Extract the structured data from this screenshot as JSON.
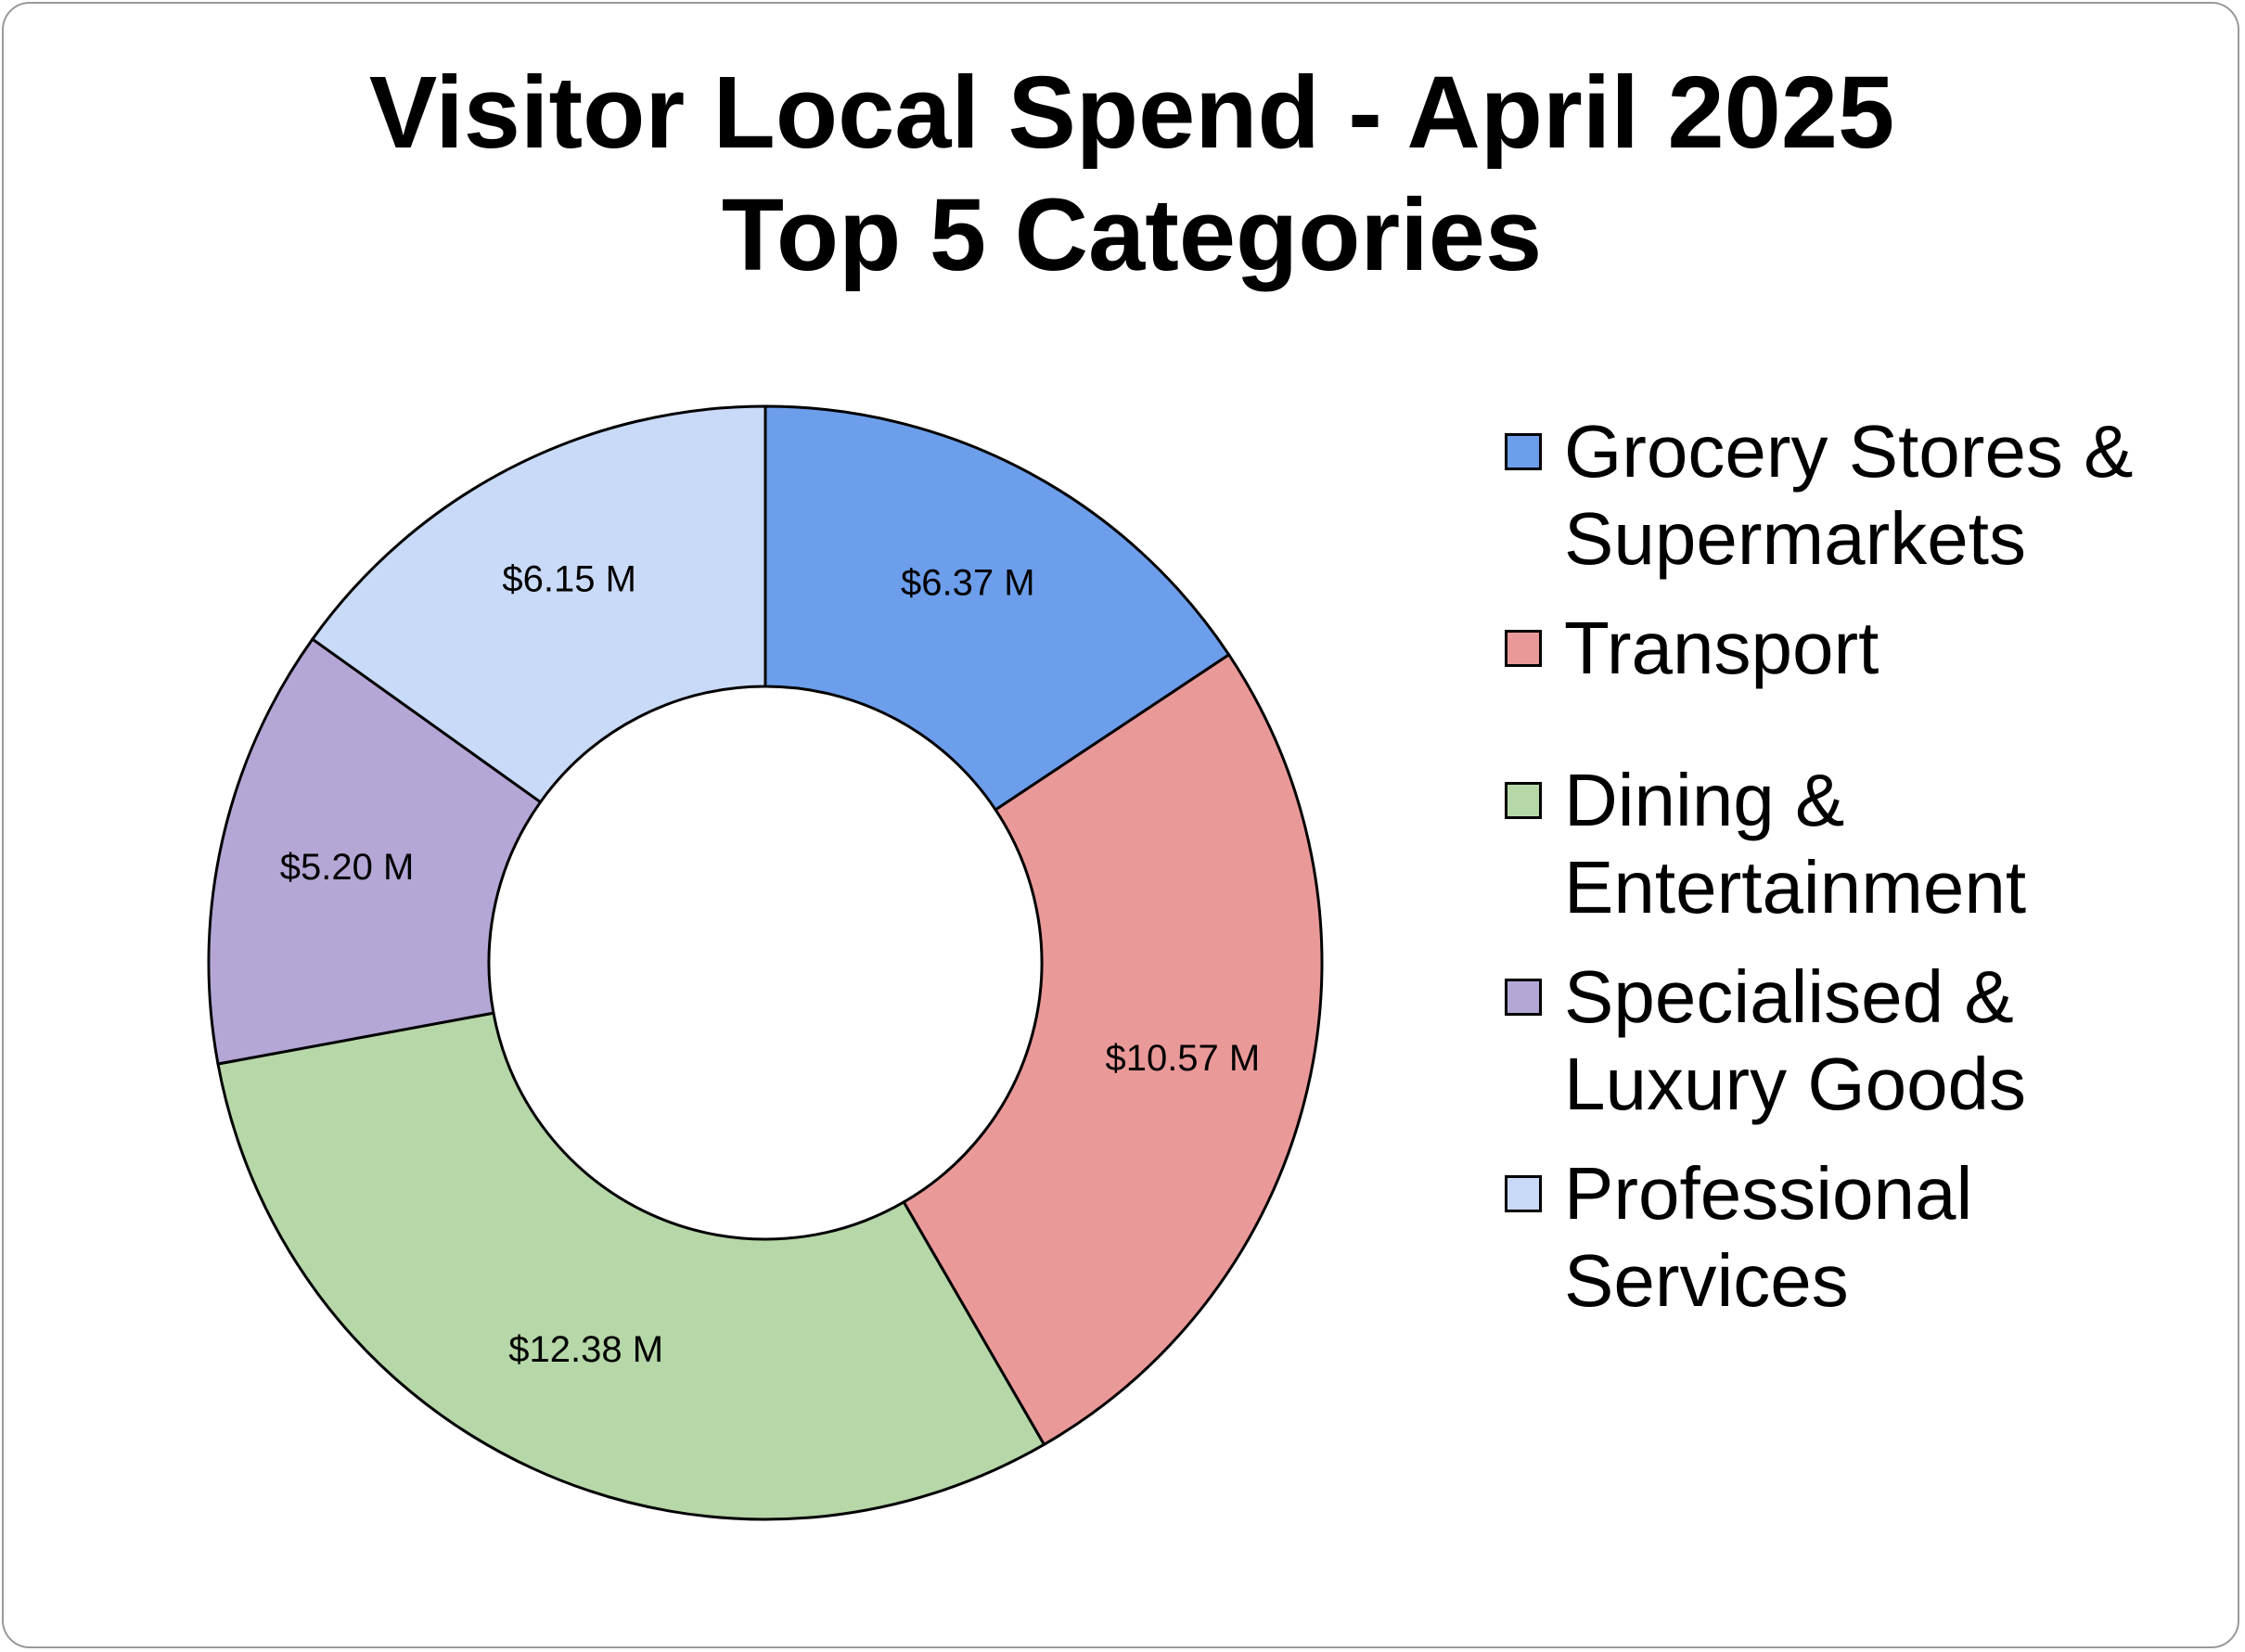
{
  "chart_data": {
    "type": "pie",
    "title": "Visitor Local Spend - April 2025",
    "subtitle": "Top 5 Categories",
    "variant": "donut",
    "categories": [
      "Grocery Stores & Supermarkets",
      "Transport",
      "Dining & Entertainment",
      "Specialised & Luxury Goods",
      "Professional Services"
    ],
    "values": [
      6.37,
      10.57,
      12.38,
      5.2,
      6.15
    ],
    "data_labels": [
      "$6.37 M",
      "$10.57 M",
      "$12.38 M",
      "$5.20 M",
      "$6.15 M"
    ],
    "colors": [
      "#6d9eeb",
      "#ea9999",
      "#b6d7a8",
      "#b4a7d6",
      "#c9daf8"
    ],
    "legend_position": "right",
    "legend_labels": [
      "Grocery Stores &\nSupermarkets",
      "Transport",
      "Dining &\nEntertainment",
      "Specialised &\nLuxury Goods",
      "Professional\nServices"
    ]
  }
}
